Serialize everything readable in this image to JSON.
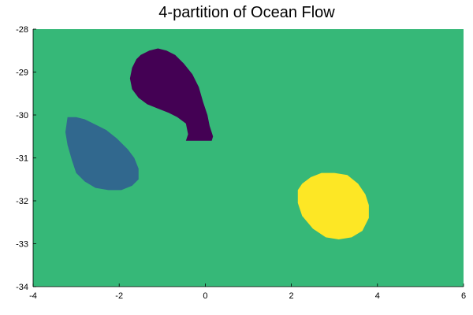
{
  "chart_data": {
    "type": "heatmap",
    "title": "4-partition of Ocean Flow",
    "xlabel": "",
    "ylabel": "",
    "xlim": [
      -4,
      6
    ],
    "ylim": [
      -34,
      -28
    ],
    "xticks": [
      -4,
      -2,
      0,
      2,
      4,
      6
    ],
    "yticks": [
      -28,
      -29,
      -30,
      -31,
      -32,
      -33,
      -34
    ],
    "xtick_labels": [
      "-4",
      "-2",
      "0",
      "2",
      "4",
      "6"
    ],
    "ytick_labels": [
      "-28",
      "-29",
      "-30",
      "-31",
      "-32",
      "-33",
      "-34"
    ],
    "grid": false,
    "colormap": "viridis",
    "background_color": "#36B878",
    "regions": [
      {
        "color": "#440154",
        "outline": [
          [
            -1.7,
            -28.9
          ],
          [
            -1.6,
            -28.7
          ],
          [
            -1.5,
            -28.6
          ],
          [
            -1.3,
            -28.5
          ],
          [
            -1.1,
            -28.45
          ],
          [
            -0.9,
            -28.5
          ],
          [
            -0.7,
            -28.6
          ],
          [
            -0.5,
            -28.8
          ],
          [
            -0.3,
            -29.05
          ],
          [
            -0.15,
            -29.35
          ],
          [
            -0.05,
            -29.7
          ],
          [
            0.05,
            -30.0
          ],
          [
            0.1,
            -30.25
          ],
          [
            0.18,
            -30.5
          ],
          [
            0.15,
            -30.6
          ],
          [
            -0.45,
            -30.6
          ],
          [
            -0.4,
            -30.45
          ],
          [
            -0.45,
            -30.2
          ],
          [
            -0.65,
            -30.05
          ],
          [
            -0.85,
            -29.95
          ],
          [
            -1.1,
            -29.85
          ],
          [
            -1.35,
            -29.75
          ],
          [
            -1.55,
            -29.6
          ],
          [
            -1.7,
            -29.4
          ],
          [
            -1.75,
            -29.15
          ]
        ]
      },
      {
        "color": "#31688E",
        "outline": [
          [
            -3.2,
            -30.05
          ],
          [
            -3.0,
            -30.05
          ],
          [
            -2.8,
            -30.1
          ],
          [
            -2.6,
            -30.2
          ],
          [
            -2.3,
            -30.35
          ],
          [
            -2.05,
            -30.55
          ],
          [
            -1.8,
            -30.8
          ],
          [
            -1.65,
            -31.0
          ],
          [
            -1.55,
            -31.25
          ],
          [
            -1.55,
            -31.5
          ],
          [
            -1.7,
            -31.65
          ],
          [
            -1.95,
            -31.75
          ],
          [
            -2.25,
            -31.75
          ],
          [
            -2.55,
            -31.7
          ],
          [
            -2.8,
            -31.55
          ],
          [
            -3.0,
            -31.35
          ],
          [
            -3.1,
            -31.05
          ],
          [
            -3.2,
            -30.7
          ],
          [
            -3.25,
            -30.4
          ]
        ]
      },
      {
        "color": "#FDE725",
        "outline": [
          [
            2.15,
            -31.75
          ],
          [
            2.25,
            -31.6
          ],
          [
            2.45,
            -31.45
          ],
          [
            2.7,
            -31.35
          ],
          [
            3.0,
            -31.35
          ],
          [
            3.3,
            -31.4
          ],
          [
            3.55,
            -31.6
          ],
          [
            3.72,
            -31.85
          ],
          [
            3.8,
            -32.1
          ],
          [
            3.8,
            -32.4
          ],
          [
            3.65,
            -32.7
          ],
          [
            3.4,
            -32.85
          ],
          [
            3.1,
            -32.9
          ],
          [
            2.8,
            -32.85
          ],
          [
            2.5,
            -32.65
          ],
          [
            2.25,
            -32.35
          ],
          [
            2.15,
            -32.05
          ]
        ]
      }
    ]
  }
}
